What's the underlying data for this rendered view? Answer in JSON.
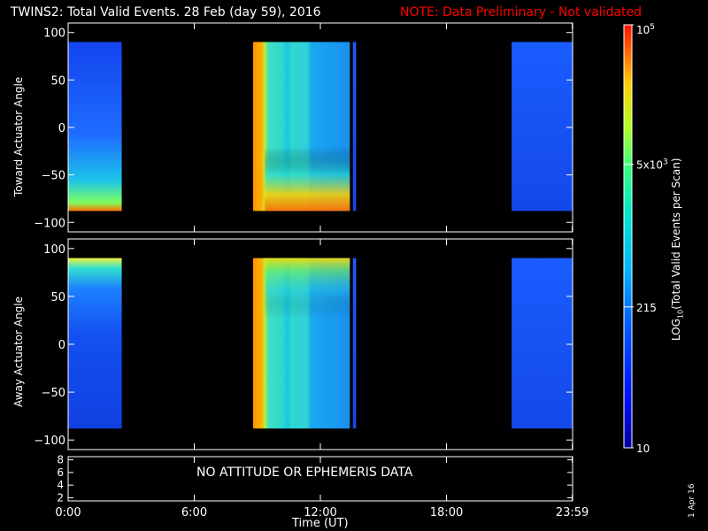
{
  "header": {
    "title": "TWINS2: Total Valid Events. 28 Feb (day  59), 2016",
    "note": "NOTE: Data Preliminary - Not validated"
  },
  "panels": {
    "top_ylabel": "Toward Actuator Angle",
    "bottom_ylabel": "Away Actuator Angle",
    "no_data_text": "NO ATTITUDE OR EPHEMERIS DATA",
    "xlabel": "Time (UT)",
    "date_stamp": "1 Apr 16"
  },
  "colorbar": {
    "label": "LOG10(Total Valid Events per Scan)",
    "ticks": [
      "10",
      "215",
      "5x10^3",
      "10^5"
    ]
  },
  "chart_data": [
    {
      "type": "heatmap",
      "title": "TWINS2: Total Valid Events. 28 Feb (day  59), 2016",
      "ylabel": "Toward Actuator Angle",
      "xlabel": "",
      "xlim": [
        0,
        24
      ],
      "ylim": [
        -110,
        110
      ],
      "xticks": [
        "0:00",
        "6:00",
        "12:00",
        "18:00",
        "23:59"
      ],
      "yticks": [
        -100,
        -50,
        0,
        50,
        100
      ],
      "data_extent_y": [
        -88,
        90
      ],
      "segments": [
        {
          "start_h": 0.0,
          "end_h": 2.55,
          "level": "low",
          "enhanced_edge": "bottom"
        },
        {
          "start_h": 8.8,
          "end_h": 13.4,
          "level": "high",
          "enhanced_edge": "bottom"
        },
        {
          "start_h": 13.55,
          "end_h": 13.7,
          "level": "low"
        },
        {
          "start_h": 21.1,
          "end_h": 23.98,
          "level": "low"
        }
      ]
    },
    {
      "type": "heatmap",
      "ylabel": "Away Actuator Angle",
      "xlabel": "",
      "xlim": [
        0,
        24
      ],
      "ylim": [
        -110,
        110
      ],
      "xticks": [
        "0:00",
        "6:00",
        "12:00",
        "18:00",
        "23:59"
      ],
      "yticks": [
        -100,
        -50,
        0,
        50,
        100
      ],
      "data_extent_y": [
        -88,
        90
      ],
      "segments": [
        {
          "start_h": 0.0,
          "end_h": 2.55,
          "level": "low",
          "enhanced_edge": "top"
        },
        {
          "start_h": 8.8,
          "end_h": 13.4,
          "level": "high",
          "enhanced_edge": "top"
        },
        {
          "start_h": 13.55,
          "end_h": 13.7,
          "level": "low"
        },
        {
          "start_h": 21.1,
          "end_h": 23.98,
          "level": "low"
        }
      ]
    },
    {
      "type": "line",
      "xlabel": "Time (UT)",
      "xlim": [
        0,
        24
      ],
      "ylim": [
        1.5,
        8.5
      ],
      "xticks": [
        "0:00",
        "6:00",
        "12:00",
        "18:00",
        "23:59"
      ],
      "yticks": [
        2,
        4,
        6,
        8
      ],
      "series": []
    }
  ]
}
